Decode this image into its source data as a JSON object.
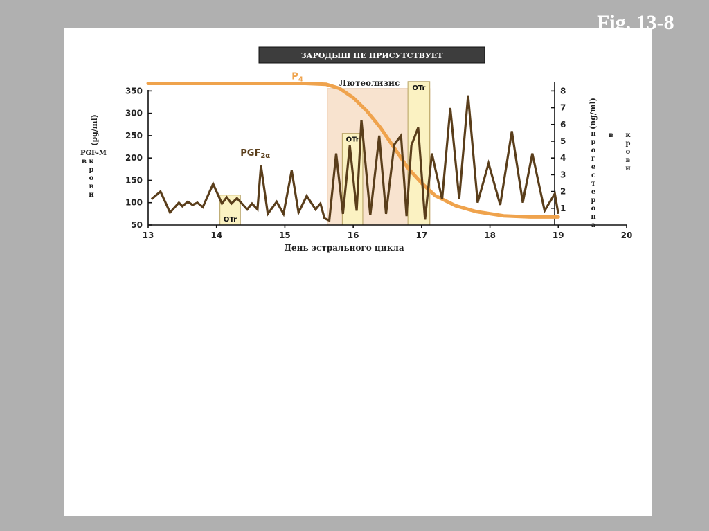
{
  "figure_label": "Fig. 13-8",
  "colors": {
    "background": "#b0b0b0",
    "panel": "#ffffff",
    "p4_curve": "#efa34d",
    "pgf_curve": "#5a3e1b",
    "luteolysis_band": "#f7dfc7",
    "otr_box": "#fbf2c2"
  },
  "chart_data": {
    "type": "line",
    "title": "ЗАРОДЫШ НЕ ПРИСУТСТВУЕТ",
    "xlabel": "День эстрального цикла",
    "ylabel_left": "(pg/ml)",
    "ylabel_left_name": "PGF-M",
    "ylabel_left_name_tail": "в крови",
    "ylabel_right": "(ng/ml)",
    "ylabel_right_name": "прогестерона",
    "ylabel_right_name_tail": "в крови",
    "xlim": [
      13,
      20
    ],
    "ylim_left": [
      50,
      380
    ],
    "ylim_right": [
      0,
      8.8
    ],
    "x_ticks": [
      13,
      14,
      15,
      16,
      17,
      18,
      19,
      20
    ],
    "y_ticks_left": [
      50,
      100,
      150,
      200,
      250,
      300,
      350
    ],
    "y_ticks_right": [
      1,
      2,
      3,
      4,
      5,
      6,
      7,
      8
    ],
    "band": {
      "label": "Лютеолизис",
      "x": [
        15.62,
        17.12
      ]
    },
    "otr_boxes": [
      {
        "label": "OTr",
        "x": [
          14.05,
          14.35
        ],
        "y": [
          50,
          117
        ]
      },
      {
        "label": "OTr",
        "x": [
          15.84,
          16.14
        ],
        "y": [
          50,
          255
        ]
      },
      {
        "label": "OTr",
        "x": [
          16.8,
          17.12
        ],
        "y": [
          50,
          371
        ]
      }
    ],
    "series": [
      {
        "name": "P4",
        "axis": "right",
        "x": [
          13.0,
          14.0,
          15.0,
          15.3,
          15.6,
          15.8,
          16.0,
          16.2,
          16.4,
          16.6,
          16.8,
          17.0,
          17.2,
          17.5,
          17.8,
          18.2,
          18.6,
          19.0
        ],
        "values": [
          8.45,
          8.45,
          8.45,
          8.45,
          8.4,
          8.15,
          7.6,
          6.8,
          5.8,
          4.6,
          3.4,
          2.5,
          1.75,
          1.15,
          0.8,
          0.55,
          0.48,
          0.48
        ]
      },
      {
        "name": "PGF2α",
        "axis": "left",
        "x": [
          13.05,
          13.18,
          13.32,
          13.45,
          13.5,
          13.58,
          13.65,
          13.72,
          13.8,
          13.95,
          14.08,
          14.15,
          14.22,
          14.3,
          14.45,
          14.52,
          14.6,
          14.65,
          14.75,
          14.88,
          14.98,
          15.1,
          15.2,
          15.32,
          15.45,
          15.52,
          15.58,
          15.65,
          15.75,
          15.85,
          15.95,
          16.05,
          16.12,
          16.25,
          16.38,
          16.48,
          16.6,
          16.7,
          16.78,
          16.85,
          16.95,
          17.05,
          17.15,
          17.3,
          17.42,
          17.55,
          17.68,
          17.82,
          17.98,
          18.15,
          18.32,
          18.48,
          18.62,
          18.8,
          18.95,
          19.0
        ],
        "values": [
          108,
          125,
          78,
          100,
          92,
          102,
          95,
          100,
          90,
          142,
          98,
          112,
          98,
          110,
          85,
          98,
          85,
          183,
          75,
          102,
          75,
          172,
          78,
          115,
          85,
          98,
          65,
          60,
          210,
          75,
          228,
          82,
          285,
          72,
          250,
          75,
          230,
          250,
          70,
          228,
          268,
          62,
          210,
          108,
          312,
          108,
          340,
          100,
          188,
          95,
          260,
          100,
          210,
          82,
          120,
          75
        ]
      }
    ],
    "annotations": [
      {
        "text": "P",
        "sub": "4",
        "near_x": 15.1,
        "axis": "right",
        "near_y": 8.7
      },
      {
        "text": "PGF",
        "sub": "2α",
        "near_x": 14.35,
        "axis": "left",
        "near_y": 205
      }
    ]
  }
}
